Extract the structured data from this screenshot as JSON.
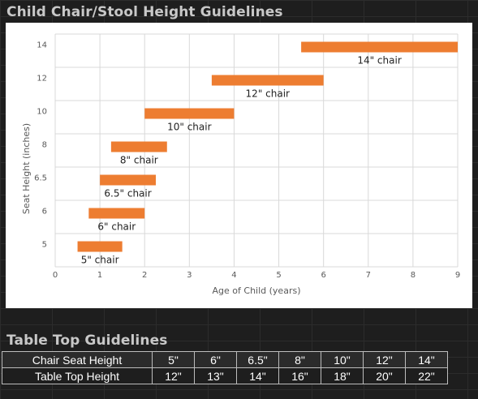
{
  "chart_title": "Child Chair/Stool Height Guidelines",
  "table_title": "Table Top Guidelines",
  "colors": {
    "bar": "#ed7d31",
    "grid": "#d9d9d9",
    "panel": "#ffffff",
    "page": "#1e1e1e"
  },
  "chart_data": {
    "type": "bar",
    "orientation": "horizontal-range",
    "xlabel": "Age of Child (years)",
    "ylabel": "Seat Height (inches)",
    "xlim": [
      0,
      9
    ],
    "x_ticks": [
      "0",
      "1",
      "2",
      "3",
      "4",
      "5",
      "6",
      "7",
      "8",
      "9"
    ],
    "categories": [
      "5",
      "6",
      "6.5",
      "8",
      "10",
      "12",
      "14"
    ],
    "bars": [
      {
        "category": "5",
        "start": 0.5,
        "end": 1.5,
        "label": "5\" chair"
      },
      {
        "category": "6",
        "start": 0.75,
        "end": 2.0,
        "label": "6\" chair"
      },
      {
        "category": "6.5",
        "start": 1.0,
        "end": 2.25,
        "label": "6.5\" chair"
      },
      {
        "category": "8",
        "start": 1.25,
        "end": 2.5,
        "label": "8\" chair"
      },
      {
        "category": "10",
        "start": 2.0,
        "end": 4.0,
        "label": "10\" chair"
      },
      {
        "category": "12",
        "start": 3.5,
        "end": 6.0,
        "label": "12\" chair"
      },
      {
        "category": "14",
        "start": 5.5,
        "end": 9.0,
        "label": "14\" chair"
      }
    ],
    "grid": true,
    "legend": "none"
  },
  "table": {
    "rows": [
      {
        "label": "Chair Seat Height",
        "values": [
          "5\"",
          "6\"",
          "6.5\"",
          "8\"",
          "10\"",
          "12\"",
          "14\""
        ]
      },
      {
        "label": "Table Top Height",
        "values": [
          "12\"",
          "13\"",
          "14\"",
          "16\"",
          "18\"",
          "20\"",
          "22\""
        ]
      }
    ]
  }
}
